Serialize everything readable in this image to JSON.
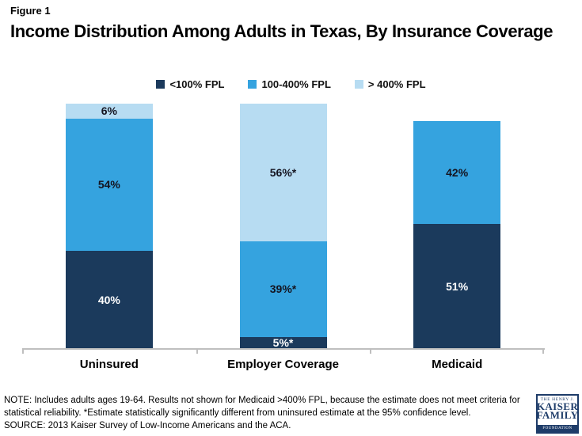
{
  "header": {
    "figure_label": "Figure 1",
    "title": "Income Distribution Among Adults in Texas, By Insurance Coverage"
  },
  "chart_data": {
    "type": "bar",
    "stacked": true,
    "title": "Income Distribution Among Adults in Texas, By Insurance Coverage",
    "categories": [
      "Uninsured",
      "Employer Coverage",
      "Medicaid"
    ],
    "series": [
      {
        "name": "<100% FPL",
        "color": "#1B3A5C",
        "label_color": "#FFFFFF",
        "values": [
          40,
          5,
          51
        ],
        "labels": [
          "40%",
          "5%*",
          "51%"
        ]
      },
      {
        "name": "100-400% FPL",
        "color": "#35A3DF",
        "label_color": "#141420",
        "values": [
          54,
          39,
          42
        ],
        "labels": [
          "54%",
          "39%*",
          "42%"
        ]
      },
      {
        "name": "> 400% FPL",
        "color": "#B7DCF2",
        "label_color": "#141420",
        "values": [
          6,
          56,
          null
        ],
        "labels": [
          "6%",
          "56%*",
          null
        ]
      }
    ],
    "ylim": [
      0,
      100
    ],
    "unit": "%",
    "legend_position": "top",
    "grid": false
  },
  "footnote": {
    "note": "NOTE: Includes adults ages 19-64. Results not shown for Medicaid >400% FPL, because the estimate does not meet criteria for statistical reliability. *Estimate statistically significantly different from uninsured estimate at the 95% confidence level.",
    "source": "SOURCE: 2013 Kaiser Survey of Low-Income Americans and the ACA."
  },
  "logo": {
    "line1": "THE HENRY J.",
    "line2": "KAISER",
    "line3": "FAMILY",
    "line4": "FOUNDATION"
  },
  "colors": {
    "axis": "#BFBFBF",
    "navy": "#1B3A5C",
    "mid_blue": "#35A3DF",
    "light_blue": "#B7DCF2"
  }
}
